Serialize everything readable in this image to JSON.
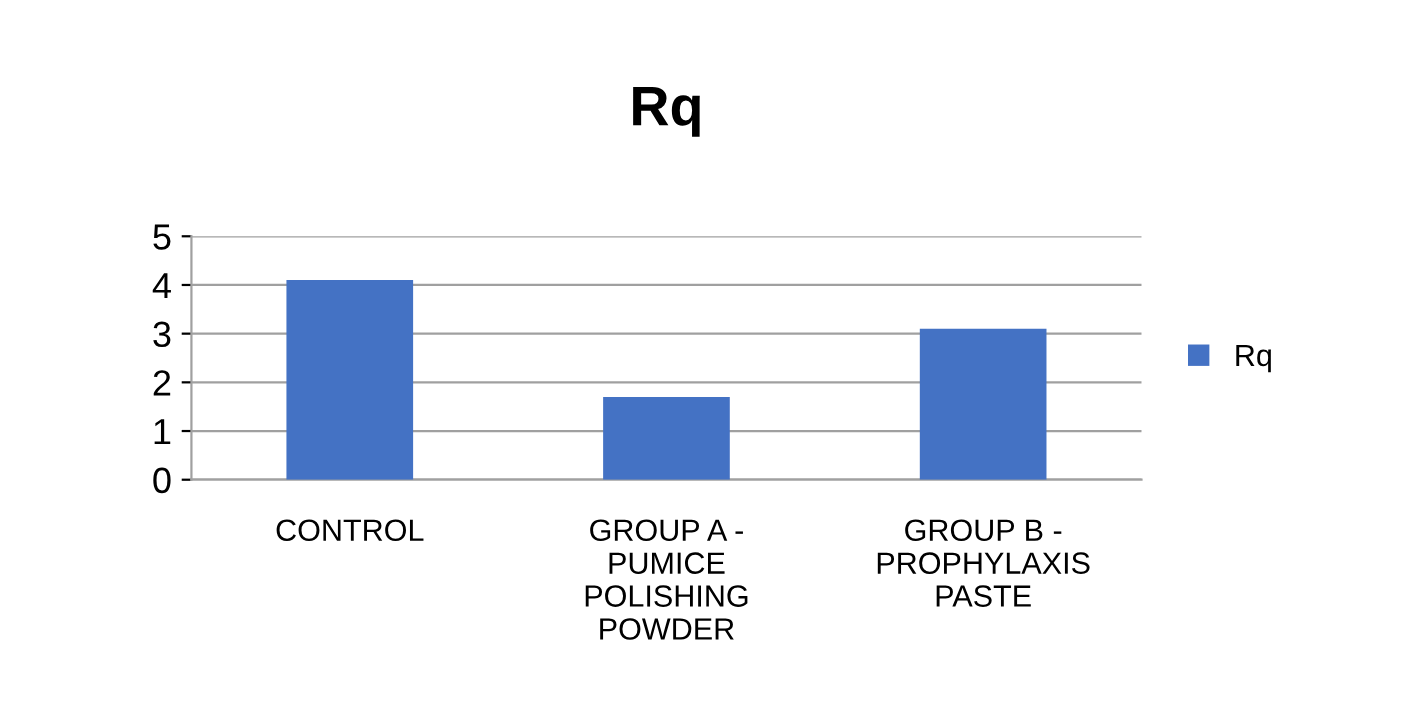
{
  "chart_data": {
    "type": "bar",
    "title": "Rq",
    "categories": [
      "CONTROL",
      "GROUP A -\nPUMICE\nPOLISHING\nPOWDER",
      "GROUP B -\nPROPHYLAXIS\nPASTE"
    ],
    "series": [
      {
        "name": "Rq",
        "color": "#4472c4",
        "values": [
          4.1,
          1.7,
          3.1
        ]
      }
    ],
    "ylim": [
      0,
      5
    ],
    "yticks": [
      0,
      1,
      2,
      3,
      4,
      5
    ],
    "grid": "y",
    "legend": "right"
  }
}
